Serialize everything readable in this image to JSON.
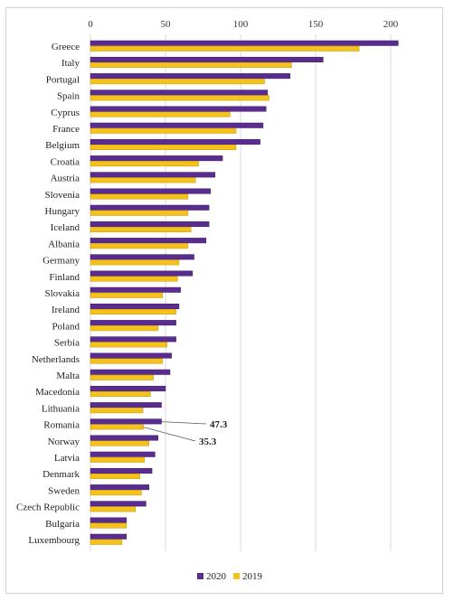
{
  "chart_data": {
    "type": "bar",
    "orientation": "horizontal",
    "categories": [
      "Greece",
      "Italy",
      "Portugal",
      "Spain",
      "Cyprus",
      "France",
      "Belgium",
      "Croatia",
      "Austria",
      "Slovenia",
      "Hungary",
      "Iceland",
      "Albania",
      "Germany",
      "Finland",
      "Slovakia",
      "Ireland",
      "Poland",
      "Serbia",
      "Netherlands",
      "Malta",
      "Macedonia",
      "Lithuania",
      "Romania",
      "Norway",
      "Latvia",
      "Denmark",
      "Sweden",
      "Czech Republic",
      "Bulgaria",
      "Luxembourg"
    ],
    "series": [
      {
        "name": "2020",
        "color": "#5b2c8f",
        "values": [
          205,
          155,
          133,
          118,
          117,
          115,
          113,
          88,
          83,
          80,
          79,
          79,
          77,
          69,
          68,
          60,
          59,
          57,
          57,
          54,
          53,
          50,
          47.3,
          47.3,
          45,
          43,
          41,
          39,
          37,
          24,
          24
        ]
      },
      {
        "name": "2019",
        "color": "#f4c21a",
        "values": [
          179,
          134,
          116,
          119,
          93,
          97,
          97,
          72,
          70,
          65,
          65,
          67,
          65,
          59,
          58,
          48,
          57,
          45,
          51,
          48,
          42,
          40,
          35,
          35.3,
          39,
          36,
          33,
          34,
          30,
          24,
          21
        ]
      }
    ],
    "xlim": [
      0,
      210
    ],
    "xticks": [
      0,
      50,
      100,
      150,
      200
    ],
    "grid": true,
    "legend": "bottom-center",
    "annotations": [
      {
        "category": "Romania",
        "series": "2020",
        "text": "47.3"
      },
      {
        "category": "Romania",
        "series": "2019",
        "text": "35.3"
      }
    ]
  }
}
